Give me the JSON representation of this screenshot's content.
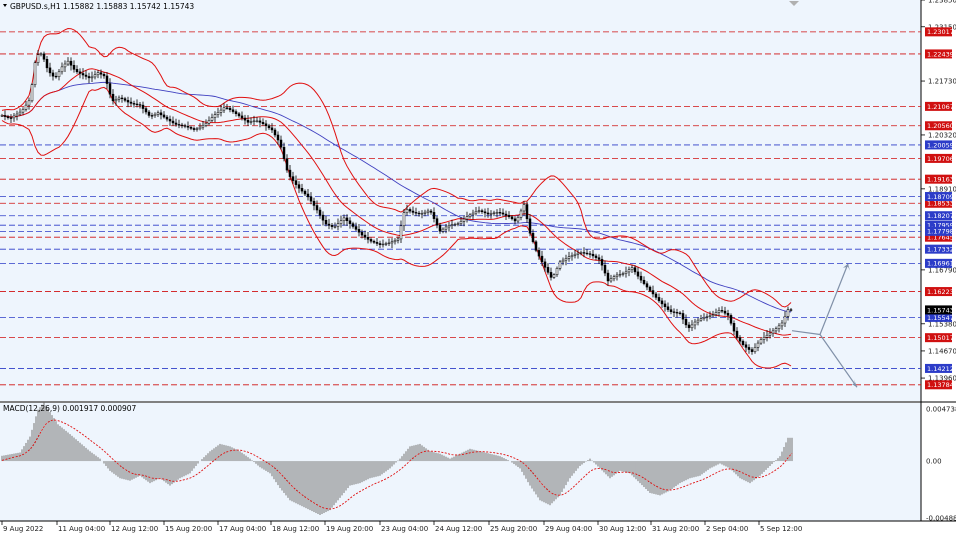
{
  "window": {
    "symbol_header": "GBPUSD.s,H1  1.15882 1.15883 1.15742 1.15743",
    "macd_header": "MACD(12,26,9) 0.001917 0.000907"
  },
  "colors": {
    "background": "#eef5fd",
    "bollinger": "#e01010",
    "ma": "#4040c0",
    "candle": "#000000",
    "red_level": "#d01010",
    "blue_level": "#2c3cc8",
    "current_price_box": "#000000",
    "arrow": "#8090a8",
    "macd_hist": "#8a8a8a",
    "macd_signal": "#e01010"
  },
  "chart_data": {
    "type": "candlestick",
    "price_axis": {
      "ylim": [
        1.1336,
        1.2385
      ],
      "labels": [
        "1.23850",
        "1.23150",
        "1.21730",
        "1.20320",
        "1.18910",
        "1.16790",
        "1.15380",
        "1.14670",
        "1.13960"
      ],
      "label_values": [
        1.2385,
        1.2315,
        1.2173,
        1.2032,
        1.1891,
        1.1679,
        1.1538,
        1.1467,
        1.1396
      ]
    },
    "current_price": "1.15743",
    "red_levels": [
      {
        "value": 1.23017,
        "label": "1.23017"
      },
      {
        "value": 1.22439,
        "label": "1.22439"
      },
      {
        "value": 1.21067,
        "label": "1.21067"
      },
      {
        "value": 1.2056,
        "label": "1.20560"
      },
      {
        "value": 1.19706,
        "label": "1.19706"
      },
      {
        "value": 1.19163,
        "label": "1.19163"
      },
      {
        "value": 1.18533,
        "label": "1.18533"
      },
      {
        "value": 1.17645,
        "label": "1.17645"
      },
      {
        "value": 1.16223,
        "label": "1.16223"
      },
      {
        "value": 1.15017,
        "label": "1.15017"
      },
      {
        "value": 1.13784,
        "label": "1.13784"
      }
    ],
    "blue_levels": [
      {
        "value": 1.20059,
        "label": "1.20059"
      },
      {
        "value": 1.18709,
        "label": "1.18709"
      },
      {
        "value": 1.18207,
        "label": "1.18207"
      },
      {
        "value": 1.17959,
        "label": "1.17959"
      },
      {
        "value": 1.17798,
        "label": "1.17798"
      },
      {
        "value": 1.17332,
        "label": "1.17332"
      },
      {
        "value": 1.16961,
        "label": "1.16961"
      },
      {
        "value": 1.15547,
        "label": "1.15547"
      },
      {
        "value": 1.14212,
        "label": "1.14212"
      }
    ],
    "x_labels": [
      "9 Aug 2022",
      "11 Aug 04:00",
      "12 Aug 12:00",
      "15 Aug 20:00",
      "17 Aug 04:00",
      "18 Aug 12:00",
      "19 Aug 20:00",
      "23 Aug 04:00",
      "24 Aug 12:00",
      "25 Aug 20:00",
      "29 Aug 04:00",
      "30 Aug 12:00",
      "31 Aug 20:00",
      "2 Sep 04:00",
      "5 Sep 12:00"
    ],
    "price_path": [
      [
        0,
        1.2085
      ],
      [
        10,
        1.2075
      ],
      [
        22,
        1.2095
      ],
      [
        30,
        1.2125
      ],
      [
        36,
        1.224
      ],
      [
        42,
        1.2245
      ],
      [
        48,
        1.22
      ],
      [
        55,
        1.218
      ],
      [
        62,
        1.221
      ],
      [
        68,
        1.2225
      ],
      [
        75,
        1.22
      ],
      [
        82,
        1.219
      ],
      [
        90,
        1.218
      ],
      [
        98,
        1.2195
      ],
      [
        105,
        1.2185
      ],
      [
        112,
        1.212
      ],
      [
        120,
        1.213
      ],
      [
        130,
        1.2115
      ],
      [
        140,
        1.211
      ],
      [
        150,
        1.208
      ],
      [
        158,
        1.209
      ],
      [
        166,
        1.2075
      ],
      [
        175,
        1.206
      ],
      [
        185,
        1.2055
      ],
      [
        195,
        1.2045
      ],
      [
        205,
        1.206
      ],
      [
        215,
        1.2085
      ],
      [
        225,
        1.2105
      ],
      [
        232,
        1.2095
      ],
      [
        240,
        1.208
      ],
      [
        248,
        1.2065
      ],
      [
        256,
        1.207
      ],
      [
        264,
        1.206
      ],
      [
        272,
        1.2045
      ],
      [
        280,
        1.201
      ],
      [
        288,
        1.193
      ],
      [
        298,
        1.1895
      ],
      [
        308,
        1.187
      ],
      [
        316,
        1.184
      ],
      [
        325,
        1.18
      ],
      [
        334,
        1.179
      ],
      [
        344,
        1.1815
      ],
      [
        354,
        1.179
      ],
      [
        362,
        1.177
      ],
      [
        370,
        1.1755
      ],
      [
        380,
        1.1745
      ],
      [
        390,
        1.175
      ],
      [
        398,
        1.176
      ],
      [
        405,
        1.184
      ],
      [
        412,
        1.183
      ],
      [
        420,
        1.1825
      ],
      [
        430,
        1.1835
      ],
      [
        440,
        1.178
      ],
      [
        448,
        1.1795
      ],
      [
        458,
        1.18
      ],
      [
        468,
        1.182
      ],
      [
        478,
        1.1835
      ],
      [
        488,
        1.1825
      ],
      [
        498,
        1.183
      ],
      [
        508,
        1.182
      ],
      [
        516,
        1.1805
      ],
      [
        524,
        1.185
      ],
      [
        530,
        1.1775
      ],
      [
        536,
        1.173
      ],
      [
        544,
        1.169
      ],
      [
        552,
        1.1655
      ],
      [
        560,
        1.17
      ],
      [
        570,
        1.1715
      ],
      [
        580,
        1.1725
      ],
      [
        590,
        1.172
      ],
      [
        600,
        1.1705
      ],
      [
        608,
        1.165
      ],
      [
        616,
        1.1665
      ],
      [
        624,
        1.167
      ],
      [
        632,
        1.1685
      ],
      [
        640,
        1.1655
      ],
      [
        650,
        1.1625
      ],
      [
        660,
        1.1595
      ],
      [
        670,
        1.157
      ],
      [
        680,
        1.1565
      ],
      [
        688,
        1.1525
      ],
      [
        696,
        1.1545
      ],
      [
        704,
        1.1555
      ],
      [
        712,
        1.156
      ],
      [
        720,
        1.1575
      ],
      [
        728,
        1.156
      ],
      [
        736,
        1.1505
      ],
      [
        744,
        1.148
      ],
      [
        752,
        1.1465
      ],
      [
        760,
        1.1495
      ],
      [
        768,
        1.151
      ],
      [
        776,
        1.1525
      ],
      [
        782,
        1.154
      ],
      [
        788,
        1.1575
      ],
      [
        792,
        1.1574
      ]
    ],
    "macd": {
      "ylim": [
        -0.004889,
        0.004738
      ],
      "labels": [
        "0.004738",
        "0.00",
        "-0.004889"
      ],
      "label_values": [
        0.004738,
        0.0,
        -0.004889
      ],
      "hist_path": [
        [
          0,
          0.0004
        ],
        [
          20,
          0.0007
        ],
        [
          30,
          0.002
        ],
        [
          38,
          0.0042
        ],
        [
          44,
          0.0048
        ],
        [
          50,
          0.004
        ],
        [
          58,
          0.003
        ],
        [
          70,
          0.0022
        ],
        [
          80,
          0.0015
        ],
        [
          90,
          0.0008
        ],
        [
          100,
          0.0002
        ],
        [
          110,
          -0.0008
        ],
        [
          120,
          -0.0014
        ],
        [
          130,
          -0.0016
        ],
        [
          140,
          -0.0012
        ],
        [
          150,
          -0.0018
        ],
        [
          160,
          -0.0014
        ],
        [
          170,
          -0.002
        ],
        [
          180,
          -0.0014
        ],
        [
          190,
          -0.001
        ],
        [
          200,
          0.0
        ],
        [
          210,
          0.0008
        ],
        [
          220,
          0.0014
        ],
        [
          230,
          0.0012
        ],
        [
          240,
          0.0008
        ],
        [
          250,
          0.0002
        ],
        [
          260,
          -0.0005
        ],
        [
          270,
          -0.001
        ],
        [
          280,
          -0.0022
        ],
        [
          290,
          -0.0032
        ],
        [
          300,
          -0.0036
        ],
        [
          310,
          -0.004
        ],
        [
          320,
          -0.0044
        ],
        [
          330,
          -0.004
        ],
        [
          340,
          -0.003
        ],
        [
          350,
          -0.002
        ],
        [
          360,
          -0.0018
        ],
        [
          370,
          -0.0014
        ],
        [
          380,
          -0.0012
        ],
        [
          390,
          -0.0006
        ],
        [
          400,
          0.0002
        ],
        [
          410,
          0.0012
        ],
        [
          420,
          0.0014
        ],
        [
          430,
          0.0008
        ],
        [
          440,
          0.0006
        ],
        [
          450,
          0.0002
        ],
        [
          460,
          0.0006
        ],
        [
          470,
          0.001
        ],
        [
          480,
          0.0008
        ],
        [
          490,
          0.0006
        ],
        [
          500,
          0.0004
        ],
        [
          510,
          0.0
        ],
        [
          520,
          -0.0006
        ],
        [
          530,
          -0.002
        ],
        [
          540,
          -0.0032
        ],
        [
          550,
          -0.0036
        ],
        [
          560,
          -0.0028
        ],
        [
          570,
          -0.0014
        ],
        [
          580,
          -0.0004
        ],
        [
          590,
          0.0002
        ],
        [
          600,
          -0.0006
        ],
        [
          610,
          -0.0014
        ],
        [
          620,
          -0.0008
        ],
        [
          630,
          -0.001
        ],
        [
          640,
          -0.0018
        ],
        [
          650,
          -0.0026
        ],
        [
          660,
          -0.0028
        ],
        [
          670,
          -0.0024
        ],
        [
          680,
          -0.0018
        ],
        [
          690,
          -0.0014
        ],
        [
          700,
          -0.0012
        ],
        [
          710,
          -0.0006
        ],
        [
          720,
          -0.0002
        ],
        [
          730,
          -0.0006
        ],
        [
          740,
          -0.0014
        ],
        [
          750,
          -0.0018
        ],
        [
          760,
          -0.0012
        ],
        [
          770,
          -0.0004
        ],
        [
          780,
          0.0004
        ],
        [
          788,
          0.0019
        ],
        [
          792,
          0.0019
        ]
      ]
    }
  }
}
